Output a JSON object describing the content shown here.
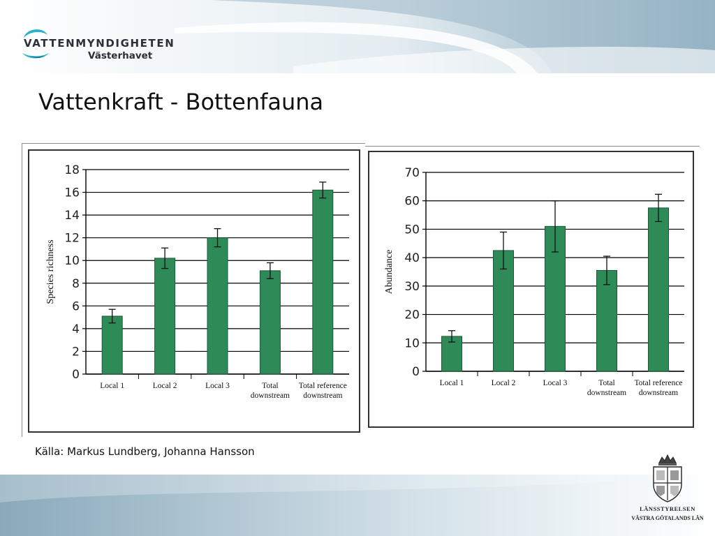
{
  "header": {
    "logo_name": "VATTENMYNDIGHETEN",
    "logo_region": "Västerhavet"
  },
  "slide": {
    "title": "Vattenkraft - Bottenfauna",
    "source": "Källa: Markus Lundberg, Johanna Hansson"
  },
  "footer": {
    "agency_name": "LÄNSSTYRELSEN",
    "agency_county": "VÄSTRA GÖTALANDS LÄN"
  },
  "colors": {
    "bar": "#2e8b57",
    "bar_outline": "#1c5a37",
    "band_light": "#dfe9ef",
    "band_dark": "#8eaebf"
  },
  "chart_data": [
    {
      "type": "bar",
      "categories": [
        [
          "Local 1"
        ],
        [
          "Local 2"
        ],
        [
          "Local 3"
        ],
        [
          "Total",
          "downstream"
        ],
        [
          "Total reference",
          "downstream"
        ]
      ],
      "values": [
        5.1,
        10.2,
        12.0,
        9.1,
        16.2
      ],
      "errors": [
        0.6,
        0.9,
        0.8,
        0.7,
        0.7
      ],
      "ylabel": "Species richness",
      "xlabel": "",
      "ylim": [
        0,
        18
      ],
      "yticks": [
        0,
        2,
        4,
        6,
        8,
        10,
        12,
        14,
        16,
        18
      ],
      "grid": true,
      "legend": "none"
    },
    {
      "type": "bar",
      "categories": [
        [
          "Local 1"
        ],
        [
          "Local 2"
        ],
        [
          "Local 3"
        ],
        [
          "Total",
          "downstream"
        ],
        [
          "Total reference",
          "downstream"
        ]
      ],
      "values": [
        12.3,
        42.5,
        51.0,
        35.5,
        57.5
      ],
      "errors": [
        2.0,
        6.5,
        9.0,
        5.0,
        4.8
      ],
      "ylabel": "Abundance",
      "xlabel": "",
      "ylim": [
        0,
        70
      ],
      "yticks": [
        0,
        10,
        20,
        30,
        40,
        50,
        60,
        70
      ],
      "grid": true,
      "legend": "none"
    }
  ]
}
